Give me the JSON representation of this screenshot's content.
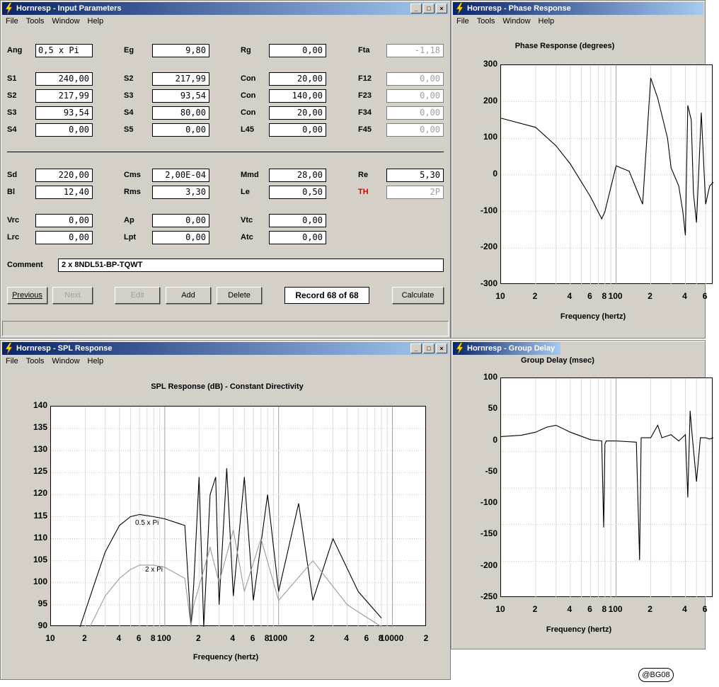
{
  "input_window": {
    "title": "Hornresp - Input Parameters",
    "menu": [
      "File",
      "Tools",
      "Window",
      "Help"
    ],
    "rows": [
      [
        {
          "label": "Ang",
          "value": "0,5 x Pi"
        },
        {
          "label": "Eg",
          "value": "9,80"
        },
        {
          "label": "Rg",
          "value": "0,00"
        },
        {
          "label": "Fta",
          "value": "-1,18",
          "disabled": true
        }
      ],
      [
        {
          "label": "S1",
          "value": "240,00"
        },
        {
          "label": "S2",
          "value": "217,99"
        },
        {
          "label": "Con",
          "value": "20,00"
        },
        {
          "label": "F12",
          "value": "0,00",
          "disabled": true
        }
      ],
      [
        {
          "label": "S2",
          "value": "217,99"
        },
        {
          "label": "S3",
          "value": "93,54"
        },
        {
          "label": "Con",
          "value": "140,00"
        },
        {
          "label": "F23",
          "value": "0,00",
          "disabled": true
        }
      ],
      [
        {
          "label": "S3",
          "value": "93,54"
        },
        {
          "label": "S4",
          "value": "80,00"
        },
        {
          "label": "Con",
          "value": "20,00"
        },
        {
          "label": "F34",
          "value": "0,00",
          "disabled": true
        }
      ],
      [
        {
          "label": "S4",
          "value": "0,00"
        },
        {
          "label": "S5",
          "value": "0,00"
        },
        {
          "label": "L45",
          "value": "0,00"
        },
        {
          "label": "F45",
          "value": "0,00",
          "disabled": true
        }
      ],
      [
        {
          "label": "Sd",
          "value": "220,00"
        },
        {
          "label": "Cms",
          "value": "2,00E-04"
        },
        {
          "label": "Mmd",
          "value": "28,00"
        },
        {
          "label": "Re",
          "value": "5,30"
        }
      ],
      [
        {
          "label": "Bl",
          "value": "12,40"
        },
        {
          "label": "Rms",
          "value": "3,30"
        },
        {
          "label": "Le",
          "value": "0,50"
        },
        {
          "label": "TH",
          "value": "2P",
          "disabled": true,
          "red": true
        }
      ],
      [
        {
          "label": "Vrc",
          "value": "0,00"
        },
        {
          "label": "Ap",
          "value": "0,00"
        },
        {
          "label": "Vtc",
          "value": "0,00"
        }
      ],
      [
        {
          "label": "Lrc",
          "value": "0,00"
        },
        {
          "label": "Lpt",
          "value": "0,00"
        },
        {
          "label": "Atc",
          "value": "0,00"
        }
      ]
    ],
    "comment_label": "Comment",
    "comment_value": "2 x 8NDL51-BP-TQWT",
    "buttons": {
      "previous": "Previous",
      "next": "Next",
      "edit": "Edit",
      "add": "Add",
      "delete": "Delete",
      "calculate": "Calculate"
    },
    "record": "Record 68 of 68"
  },
  "phase_window": {
    "title": "Hornresp - Phase Response",
    "menu": [
      "File",
      "Tools",
      "Window",
      "Help"
    ],
    "chart_title": "Phase Response (degrees)",
    "xlabel": "Frequency (hertz)",
    "yticks": [
      "300",
      "200",
      "100",
      "0",
      "-100",
      "-200",
      "-300"
    ],
    "xticks": [
      "10",
      "2",
      "4",
      "6",
      "8",
      "100",
      "2",
      "4",
      "6"
    ]
  },
  "spl_window": {
    "title": "Hornresp - SPL Response",
    "menu": [
      "File",
      "Tools",
      "Window",
      "Help"
    ],
    "chart_title": "SPL Response (dB) - Constant Directivity",
    "xlabel": "Frequency (hertz)",
    "yticks": [
      "140",
      "135",
      "130",
      "125",
      "120",
      "115",
      "110",
      "105",
      "100",
      "95",
      "90"
    ],
    "xticks": [
      "10",
      "2",
      "4",
      "6",
      "8",
      "100",
      "2",
      "4",
      "6",
      "8",
      "1000",
      "2",
      "4",
      "6",
      "8",
      "10000",
      "2"
    ],
    "annotations": [
      "0.5 x Pi",
      "2 x Pi"
    ]
  },
  "delay_window": {
    "title": "Hornresp - Group Delay",
    "chart_title": "Group Delay (msec)",
    "xlabel": "Frequency (hertz)",
    "yticks": [
      "100",
      "50",
      "0",
      "-50",
      "-100",
      "-150",
      "-200",
      "-250"
    ],
    "xticks": [
      "10",
      "2",
      "4",
      "6",
      "8",
      "100",
      "2",
      "4",
      "6"
    ]
  },
  "watermark": "@BG08",
  "chart_data": [
    {
      "type": "line",
      "title": "Phase Response (degrees)",
      "xlabel": "Frequency (hertz)",
      "ylabel": "",
      "xscale": "log",
      "xlim": [
        10,
        700
      ],
      "ylim": [
        -300,
        300
      ],
      "grid": true,
      "series": [
        {
          "x": [
            10,
            20,
            30,
            40,
            60,
            75,
            80,
            100,
            130,
            160,
            170,
            200,
            230,
            280,
            300,
            350,
            380,
            400,
            420,
            450,
            470,
            500,
            550,
            600,
            650,
            700
          ],
          "y": [
            155,
            130,
            80,
            30,
            -60,
            -120,
            -100,
            25,
            10,
            -60,
            -80,
            265,
            210,
            100,
            20,
            -30,
            -100,
            -165,
            190,
            150,
            -50,
            -130,
            170,
            -80,
            -30,
            -20
          ]
        }
      ]
    },
    {
      "type": "line",
      "title": "SPL Response (dB) - Constant Directivity",
      "xlabel": "Frequency (hertz)",
      "ylabel": "",
      "xscale": "log",
      "xlim": [
        10,
        20000
      ],
      "ylim": [
        90,
        140
      ],
      "grid": true,
      "series": [
        {
          "name": "0.5 x Pi",
          "x": [
            18,
            25,
            30,
            40,
            50,
            60,
            80,
            100,
            150,
            170,
            180,
            200,
            220,
            250,
            280,
            300,
            350,
            400,
            500,
            600,
            800,
            1000,
            1500,
            2000,
            3000,
            5000,
            8000
          ],
          "y": [
            90,
            101,
            107,
            113,
            115,
            115.5,
            115,
            114.5,
            113,
            90,
            100,
            124,
            90,
            120,
            124,
            95,
            126,
            97,
            124,
            96,
            120,
            98,
            118,
            96,
            110,
            98,
            92
          ]
        },
        {
          "name": "2 x Pi",
          "x": [
            22,
            30,
            40,
            50,
            60,
            80,
            100,
            150,
            170,
            180,
            250,
            300,
            400,
            500,
            700,
            1000,
            2000,
            4000,
            8000
          ],
          "y": [
            90,
            97,
            101,
            103,
            104,
            104,
            103.5,
            101,
            90,
            95,
            108,
            100,
            112,
            98,
            110,
            96,
            105,
            95,
            90
          ]
        }
      ]
    },
    {
      "type": "line",
      "title": "Group Delay (msec)",
      "xlabel": "Frequency (hertz)",
      "ylabel": "",
      "xscale": "log",
      "xlim": [
        10,
        700
      ],
      "ylim": [
        -250,
        100
      ],
      "grid": true,
      "series": [
        {
          "x": [
            10,
            15,
            20,
            25,
            30,
            40,
            60,
            75,
            78,
            80,
            82,
            100,
            150,
            160,
            165,
            170,
            200,
            230,
            250,
            300,
            350,
            400,
            420,
            440,
            460,
            500,
            540,
            600,
            650,
            700
          ],
          "y": [
            7,
            9,
            14,
            22,
            25,
            14,
            2,
            0,
            -138,
            -5,
            0,
            0,
            -2,
            -190,
            5,
            5,
            5,
            25,
            5,
            10,
            0,
            10,
            -90,
            48,
            5,
            -65,
            5,
            5,
            3,
            5
          ]
        }
      ]
    }
  ]
}
